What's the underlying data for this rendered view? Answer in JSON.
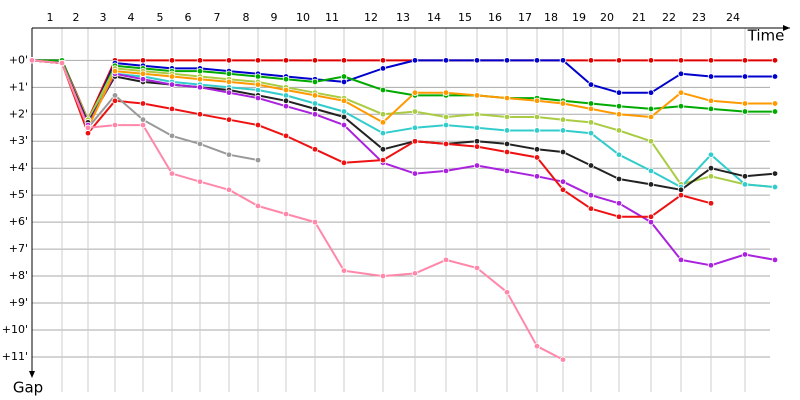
{
  "chart_data": {
    "type": "line",
    "x_label": "Time",
    "y_label": "Gap",
    "y_inverted": true,
    "grid": true,
    "x": [
      0,
      30,
      56,
      83,
      111,
      140,
      168,
      197,
      226,
      254,
      283,
      312,
      351,
      383,
      414,
      445,
      475,
      505,
      531,
      559,
      587,
      619,
      649,
      679,
      713,
      743
    ],
    "xlim": [
      0,
      743
    ],
    "xticks": [
      {
        "value": 30,
        "label": "1"
      },
      {
        "value": 56,
        "label": "2"
      },
      {
        "value": 83,
        "label": "3"
      },
      {
        "value": 111,
        "label": "4"
      },
      {
        "value": 140,
        "label": "5"
      },
      {
        "value": 168,
        "label": "6"
      },
      {
        "value": 197,
        "label": "7"
      },
      {
        "value": 226,
        "label": "8"
      },
      {
        "value": 254,
        "label": "9"
      },
      {
        "value": 283,
        "label": "10"
      },
      {
        "value": 312,
        "label": "11"
      },
      {
        "value": 351,
        "label": "12"
      },
      {
        "value": 383,
        "label": "13"
      },
      {
        "value": 414,
        "label": "14"
      },
      {
        "value": 445,
        "label": "15"
      },
      {
        "value": 475,
        "label": "16"
      },
      {
        "value": 505,
        "label": "17"
      },
      {
        "value": 531,
        "label": "18"
      },
      {
        "value": 559,
        "label": "19"
      },
      {
        "value": 587,
        "label": "20"
      },
      {
        "value": 619,
        "label": "21"
      },
      {
        "value": 649,
        "label": "22"
      },
      {
        "value": 679,
        "label": "23"
      },
      {
        "value": 713,
        "label": "24"
      }
    ],
    "ylim": [
      -1.2,
      12.3
    ],
    "yticks": [
      {
        "value": 0,
        "label": "+0'"
      },
      {
        "value": 1,
        "label": "+1'"
      },
      {
        "value": 2,
        "label": "+2'"
      },
      {
        "value": 3,
        "label": "+3'"
      },
      {
        "value": 4,
        "label": "+4'"
      },
      {
        "value": 5,
        "label": "+5'"
      },
      {
        "value": 6,
        "label": "+6'"
      },
      {
        "value": 7,
        "label": "+7'"
      },
      {
        "value": 8,
        "label": "+8'"
      },
      {
        "value": 9,
        "label": "+9'"
      },
      {
        "value": 10,
        "label": "+10'"
      },
      {
        "value": 11,
        "label": "+11'"
      }
    ],
    "series": [
      {
        "color": "#e00000",
        "values": [
          0,
          0,
          2.2,
          0,
          0,
          0,
          0,
          0,
          0,
          0,
          0,
          0,
          0,
          0,
          0,
          0,
          0,
          0,
          0,
          0,
          0,
          0,
          0,
          0,
          0,
          0
        ]
      },
      {
        "color": "#0000cc",
        "values": [
          0,
          0,
          2.3,
          0.1,
          0.2,
          0.3,
          0.3,
          0.4,
          0.5,
          0.6,
          0.7,
          0.8,
          0.3,
          0,
          0,
          0,
          0,
          0,
          0,
          0.9,
          1.2,
          1.2,
          0.5,
          0.6,
          0.6,
          0.6
        ]
      },
      {
        "color": "#00aa00",
        "values": [
          0,
          0,
          2.3,
          0.2,
          0.3,
          0.4,
          0.4,
          0.5,
          0.6,
          0.7,
          0.8,
          0.6,
          1.1,
          1.3,
          1.3,
          1.3,
          1.4,
          1.4,
          1.5,
          1.6,
          1.7,
          1.8,
          1.7,
          1.8,
          1.9,
          1.9
        ]
      },
      {
        "color": "#aacc44",
        "values": [
          0,
          0.1,
          2.2,
          0.3,
          0.4,
          0.5,
          0.6,
          0.7,
          0.8,
          1.0,
          1.2,
          1.4,
          2.0,
          1.9,
          2.1,
          2.0,
          2.1,
          2.1,
          2.2,
          2.3,
          2.6,
          3.0,
          4.6,
          4.3,
          4.6,
          4.7
        ]
      },
      {
        "color": "#33cccc",
        "values": [
          0,
          0.1,
          2.3,
          0.5,
          0.6,
          0.8,
          0.9,
          1.0,
          1.1,
          1.3,
          1.6,
          1.9,
          2.7,
          2.5,
          2.4,
          2.5,
          2.6,
          2.6,
          2.6,
          2.7,
          3.5,
          4.1,
          4.7,
          3.5,
          4.6,
          4.7
        ]
      },
      {
        "color": "#222222",
        "values": [
          0,
          0.1,
          2.3,
          0.6,
          0.8,
          0.9,
          1.0,
          1.1,
          1.3,
          1.5,
          1.8,
          2.1,
          3.3,
          3.0,
          3.1,
          3.0,
          3.1,
          3.3,
          3.4,
          3.9,
          4.4,
          4.6,
          4.8,
          4.0,
          4.3,
          4.2
        ]
      },
      {
        "color": "#aa22dd",
        "values": [
          0,
          0.1,
          2.4,
          0.5,
          0.7,
          0.9,
          1.0,
          1.2,
          1.4,
          1.7,
          2.0,
          2.4,
          3.8,
          4.2,
          4.1,
          3.9,
          4.1,
          4.3,
          4.5,
          5.0,
          5.3,
          6.0,
          7.4,
          7.6,
          7.2,
          7.4
        ]
      },
      {
        "color": "#ee1111",
        "values": [
          0,
          0.1,
          2.7,
          1.5,
          1.6,
          1.8,
          2.0,
          2.2,
          2.4,
          2.8,
          3.3,
          3.8,
          3.7,
          3.0,
          3.1,
          3.2,
          3.4,
          3.6,
          4.8,
          5.5,
          5.8,
          5.8,
          5.0,
          5.3,
          null,
          null
        ]
      },
      {
        "color": "#ff9900",
        "values": [
          0,
          0.1,
          2.5,
          0.4,
          0.5,
          0.6,
          0.7,
          0.8,
          0.9,
          1.1,
          1.3,
          1.5,
          2.3,
          1.2,
          1.2,
          1.3,
          1.4,
          1.5,
          1.6,
          1.8,
          2.0,
          2.1,
          1.2,
          1.5,
          1.6,
          1.6
        ]
      },
      {
        "color": "#999999",
        "values": [
          0,
          0.1,
          2.5,
          1.3,
          2.2,
          2.8,
          3.1,
          3.5,
          3.7,
          null,
          null,
          null,
          null,
          null,
          null,
          null,
          null,
          null,
          null,
          null,
          null,
          null,
          null,
          null,
          null,
          null
        ]
      },
      {
        "color": "#ff88aa",
        "values": [
          0,
          0.1,
          2.5,
          2.4,
          2.4,
          4.2,
          4.5,
          4.8,
          5.4,
          5.7,
          6.0,
          7.8,
          8.0,
          7.9,
          7.4,
          7.7,
          8.6,
          10.6,
          11.1,
          null,
          null,
          null,
          null,
          null,
          null,
          null
        ]
      }
    ]
  }
}
